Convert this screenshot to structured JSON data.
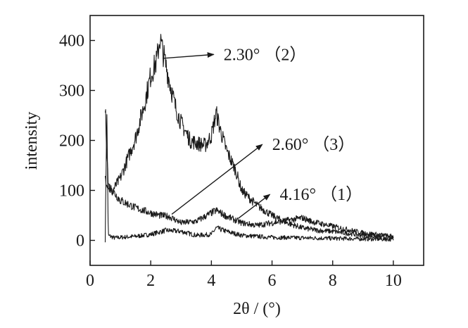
{
  "chart_data": {
    "type": "line",
    "xlabel": "2θ / (°)",
    "ylabel": "intensity",
    "xlim": [
      0,
      11
    ],
    "ylim": [
      -50,
      450
    ],
    "x_ticks": [
      0,
      2,
      4,
      6,
      8,
      10
    ],
    "y_ticks": [
      0,
      100,
      200,
      300,
      400
    ],
    "x_tick_labels": [
      "0",
      "2",
      "4",
      "6",
      "8",
      "10"
    ],
    "y_tick_labels": [
      "0",
      "100",
      "200",
      "300",
      "400"
    ],
    "grid": false,
    "legend": "none",
    "line_color": "#1a1a1a",
    "series": [
      {
        "name": "(1)",
        "x": [
          0.5,
          0.55,
          0.6,
          0.8,
          1.0,
          1.5,
          2.0,
          2.5,
          3.0,
          3.5,
          4.0,
          4.16,
          4.5,
          5.0,
          5.5,
          6.0,
          7.0,
          8.0,
          9.0,
          10.0
        ],
        "y": [
          0,
          265,
          10,
          5,
          6,
          8,
          12,
          20,
          18,
          10,
          12,
          25,
          18,
          10,
          8,
          6,
          5,
          4,
          3,
          2
        ]
      },
      {
        "name": "(2)",
        "x": [
          0.5,
          0.7,
          1.0,
          1.5,
          1.8,
          2.0,
          2.2,
          2.3,
          2.5,
          2.8,
          3.0,
          3.3,
          3.5,
          3.8,
          4.0,
          4.16,
          4.3,
          4.5,
          4.8,
          5.0,
          5.5,
          6.0,
          6.5,
          7.0,
          7.5,
          8.0,
          9.0,
          10.0
        ],
        "y": [
          125,
          95,
          125,
          205,
          275,
          330,
          360,
          405,
          350,
          270,
          235,
          200,
          195,
          190,
          210,
          255,
          220,
          180,
          140,
          100,
          70,
          50,
          35,
          25,
          20,
          18,
          10,
          5
        ]
      },
      {
        "name": "(3)",
        "x": [
          0.5,
          0.6,
          0.8,
          1.0,
          1.5,
          2.0,
          2.3,
          2.6,
          3.0,
          3.5,
          4.0,
          4.16,
          4.5,
          5.0,
          5.5,
          6.0,
          6.5,
          7.0,
          7.3,
          8.0,
          9.0,
          10.0
        ],
        "y": [
          265,
          110,
          95,
          80,
          65,
          55,
          50,
          48,
          35,
          38,
          55,
          60,
          48,
          35,
          30,
          35,
          40,
          45,
          38,
          28,
          15,
          8
        ]
      }
    ],
    "annotations": [
      {
        "text": "2.30° （2）",
        "x": 2.3,
        "y": 360,
        "text_x": 4.45,
        "text_y": 372
      },
      {
        "text": "2.60° （3）",
        "x": 2.6,
        "y": 48,
        "text_x": 6.05,
        "text_y": 192
      },
      {
        "text": "4.16° （1）",
        "x": 4.8,
        "y": 40,
        "text_x": 6.3,
        "text_y": 92
      }
    ]
  }
}
